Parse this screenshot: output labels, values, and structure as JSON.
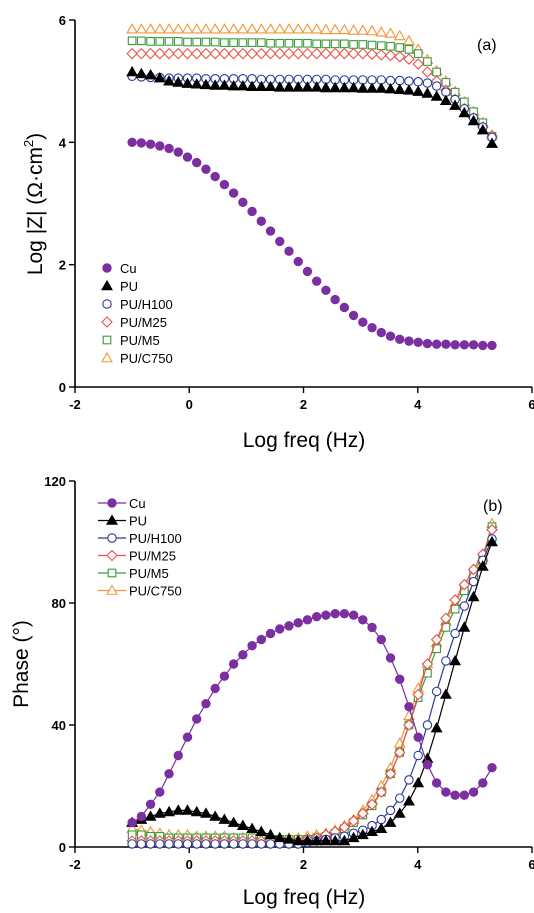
{
  "chart_data": [
    {
      "type": "scatter",
      "panel_label": "(a)",
      "xlabel": "Log freq (Hz)",
      "ylabel": "Log |Z| (Ω·cm²)",
      "ylabel_main": "Log |Z| (Ω·cm",
      "ylabel_sup": "2",
      "ylabel_close": ")",
      "xlim": [
        -2,
        6
      ],
      "ylim": [
        0,
        6
      ],
      "xticks": [
        "-2",
        "0",
        "2",
        "4",
        "6"
      ],
      "yticks": [
        "0",
        "2",
        "4",
        "6"
      ],
      "legend": "bottom-left",
      "series": [
        {
          "name": "Cu",
          "color": "#7b2fa0",
          "marker": "circle-filled",
          "x_start": -1,
          "x_end": 5.3,
          "points": 40,
          "values": [
            4.0,
            3.99,
            3.97,
            3.94,
            3.9,
            3.84,
            3.76,
            3.67,
            3.56,
            3.44,
            3.31,
            3.17,
            3.02,
            2.87,
            2.71,
            2.55,
            2.38,
            2.22,
            2.05,
            1.89,
            1.73,
            1.58,
            1.43,
            1.3,
            1.17,
            1.06,
            0.97,
            0.89,
            0.83,
            0.78,
            0.75,
            0.73,
            0.71,
            0.7,
            0.7,
            0.69,
            0.69,
            0.69,
            0.68,
            0.68
          ]
        },
        {
          "name": "PU",
          "color": "#000000",
          "marker": "triangle-filled",
          "x_start": -1,
          "x_end": 5.3,
          "points": 40,
          "values": [
            5.15,
            5.12,
            5.1,
            5.05,
            5.0,
            4.98,
            4.96,
            4.95,
            4.94,
            4.93,
            4.93,
            4.92,
            4.92,
            4.91,
            4.91,
            4.91,
            4.9,
            4.9,
            4.9,
            4.9,
            4.9,
            4.89,
            4.89,
            4.89,
            4.89,
            4.88,
            4.88,
            4.88,
            4.87,
            4.86,
            4.85,
            4.83,
            4.8,
            4.75,
            4.68,
            4.6,
            4.48,
            4.35,
            4.2,
            3.98
          ]
        },
        {
          "name": "PU/H100",
          "color": "#2b3a9a",
          "marker": "circle-open",
          "x_start": -1,
          "x_end": 5.3,
          "points": 40,
          "values": [
            5.08,
            5.07,
            5.06,
            5.06,
            5.05,
            5.05,
            5.05,
            5.05,
            5.04,
            5.04,
            5.04,
            5.04,
            5.04,
            5.04,
            5.03,
            5.03,
            5.03,
            5.03,
            5.03,
            5.03,
            5.03,
            5.03,
            5.02,
            5.02,
            5.02,
            5.02,
            5.02,
            5.02,
            5.01,
            5.01,
            5.0,
            4.99,
            4.97,
            4.92,
            4.82,
            4.7,
            4.55,
            4.4,
            4.25,
            4.08
          ]
        },
        {
          "name": "PU/M25",
          "color": "#e8514a",
          "marker": "diamond-open",
          "x_start": -1,
          "x_end": 5.3,
          "points": 40,
          "values": [
            5.45,
            5.45,
            5.45,
            5.45,
            5.45,
            5.45,
            5.45,
            5.45,
            5.45,
            5.45,
            5.45,
            5.45,
            5.45,
            5.45,
            5.45,
            5.45,
            5.45,
            5.45,
            5.45,
            5.45,
            5.45,
            5.45,
            5.45,
            5.45,
            5.45,
            5.45,
            5.44,
            5.43,
            5.42,
            5.4,
            5.36,
            5.28,
            5.15,
            5.0,
            4.85,
            4.7,
            4.55,
            4.4,
            4.25,
            4.1
          ]
        },
        {
          "name": "PU/M5",
          "color": "#3a9a3a",
          "marker": "square-open",
          "x_start": -1,
          "x_end": 5.3,
          "points": 40,
          "values": [
            5.66,
            5.66,
            5.65,
            5.65,
            5.65,
            5.65,
            5.64,
            5.64,
            5.64,
            5.64,
            5.63,
            5.63,
            5.63,
            5.63,
            5.63,
            5.62,
            5.62,
            5.62,
            5.62,
            5.62,
            5.61,
            5.61,
            5.61,
            5.61,
            5.6,
            5.6,
            5.59,
            5.58,
            5.57,
            5.55,
            5.52,
            5.45,
            5.32,
            5.15,
            4.98,
            4.82,
            4.66,
            4.5,
            4.32,
            4.1
          ]
        },
        {
          "name": "PU/C750",
          "color": "#f0953a",
          "marker": "triangle-open",
          "x_start": -1,
          "x_end": 5.3,
          "points": 40,
          "values": [
            5.85,
            5.85,
            5.85,
            5.85,
            5.85,
            5.85,
            5.85,
            5.85,
            5.85,
            5.85,
            5.85,
            5.85,
            5.85,
            5.85,
            5.85,
            5.85,
            5.85,
            5.85,
            5.85,
            5.85,
            5.85,
            5.84,
            5.84,
            5.84,
            5.83,
            5.83,
            5.82,
            5.8,
            5.78,
            5.74,
            5.66,
            5.52,
            5.35,
            5.17,
            5.0,
            4.83,
            4.66,
            4.5,
            4.32,
            4.12
          ]
        }
      ]
    },
    {
      "type": "line",
      "panel_label": "(b)",
      "xlabel": "Log freq (Hz)",
      "ylabel": "Phase (°)",
      "xlim": [
        -2,
        6
      ],
      "ylim": [
        0,
        120
      ],
      "xticks": [
        "-2",
        "0",
        "2",
        "4",
        "6"
      ],
      "yticks": [
        "0",
        "40",
        "80",
        "120"
      ],
      "legend": "top-left",
      "series": [
        {
          "name": "Cu",
          "color": "#7b2fa0",
          "marker": "circle-filled",
          "x_start": -1,
          "x_end": 5.3,
          "points": 40,
          "values": [
            8,
            10,
            14,
            18,
            24,
            30,
            36,
            42,
            47,
            52,
            56,
            60,
            63,
            66,
            68,
            70,
            71.5,
            72.5,
            73.5,
            74.5,
            75.5,
            76,
            76.5,
            76.5,
            76,
            74.5,
            72,
            68,
            62,
            55,
            46,
            36,
            27,
            21,
            18,
            17,
            17,
            18,
            21,
            26
          ]
        },
        {
          "name": "PU",
          "color": "#000000",
          "marker": "triangle-filled",
          "x_start": -1,
          "x_end": 5.3,
          "points": 40,
          "values": [
            8,
            9,
            10,
            11,
            11.5,
            12,
            12,
            11.5,
            11,
            10,
            9,
            8,
            7,
            6,
            5,
            4,
            3,
            2.5,
            2,
            2,
            2,
            2,
            2,
            2,
            3,
            4,
            5,
            6,
            8,
            11,
            15,
            21,
            29,
            39,
            50,
            61,
            72,
            82,
            92,
            100
          ]
        },
        {
          "name": "PU/H100",
          "color": "#2b3a9a",
          "marker": "circle-open",
          "x_start": -1,
          "x_end": 5.3,
          "points": 40,
          "values": [
            1,
            1,
            1,
            1,
            1,
            1,
            1,
            1,
            1,
            1,
            1,
            1,
            1,
            1,
            1,
            1,
            1,
            1,
            1,
            1.5,
            2,
            2.5,
            3,
            3.5,
            4.5,
            5.5,
            7,
            9,
            12,
            16,
            22,
            30,
            40,
            51,
            61,
            70,
            79,
            87,
            94,
            101
          ]
        },
        {
          "name": "PU/M25",
          "color": "#e8514a",
          "marker": "diamond-open",
          "x_start": -1,
          "x_end": 5.3,
          "points": 40,
          "values": [
            2,
            2,
            2,
            2,
            2,
            2,
            2,
            2,
            2,
            2,
            2,
            2,
            2,
            2,
            2,
            2,
            2,
            2,
            2,
            2.5,
            3,
            4,
            5,
            6.5,
            8.5,
            11,
            14,
            18,
            24,
            31,
            40,
            50,
            60,
            68,
            75,
            81,
            86,
            91,
            96,
            104
          ]
        },
        {
          "name": "PU/M5",
          "color": "#3a9a3a",
          "marker": "square-open",
          "x_start": -1,
          "x_end": 5.3,
          "points": 40,
          "values": [
            4,
            4,
            3.5,
            3.5,
            3,
            3,
            3,
            3,
            3,
            3,
            3,
            3,
            3,
            3,
            2.5,
            2.5,
            2.5,
            2.5,
            2.5,
            2.5,
            3,
            3.5,
            4.5,
            6,
            8,
            10.5,
            13.5,
            18,
            24,
            31,
            40,
            49,
            57,
            65,
            72,
            78,
            84,
            89,
            94,
            105
          ]
        },
        {
          "name": "PU/C750",
          "color": "#f0953a",
          "marker": "triangle-open",
          "x_start": -1,
          "x_end": 5.3,
          "points": 40,
          "values": [
            6,
            5.5,
            5,
            4.5,
            4,
            4,
            4,
            3.5,
            3.5,
            3.5,
            3.5,
            3,
            3,
            3,
            3,
            3,
            3,
            3,
            3,
            3.5,
            4,
            4.5,
            5.5,
            7,
            9,
            12,
            15.5,
            20,
            26,
            34,
            43,
            52,
            60,
            67,
            74,
            80,
            85,
            90,
            95,
            106
          ]
        }
      ]
    }
  ]
}
